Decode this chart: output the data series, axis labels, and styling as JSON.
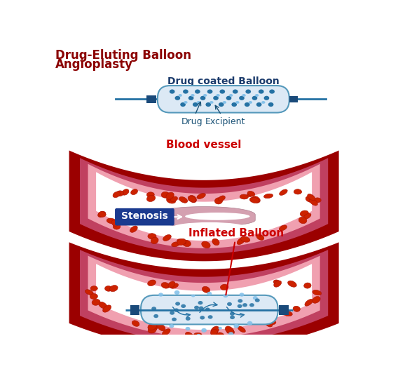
{
  "title_line1": "Drug-Eluting Balloon",
  "title_line2": "Angioplasty",
  "title_color": "#8B0000",
  "title_fontsize": 12,
  "bg_color": "#FFFFFF",
  "balloon_label": "Drug coated Balloon",
  "balloon_label_color": "#1a3a6b",
  "blood_vessel_label": "Blood vessel",
  "blood_vessel_label_color": "#cc0000",
  "stenosis_label": "Stenosis",
  "stenosis_label_color": "#FFFFFF",
  "stenosis_bg_color": "#1a3a8f",
  "inflated_label": "Inflated Balloon",
  "inflated_label_color": "#cc0000",
  "drug_label": "Drug",
  "excipient_label": "Excipient",
  "label_color_blue": "#1a5276",
  "vessel_outer_color": "#9B0000",
  "vessel_mid_color": "#C04060",
  "vessel_inner_color": "#F0A0B0",
  "vessel_lumen_color": "#FFFFFF",
  "balloon_fill": "#dce9f5",
  "balloon_outline": "#5599bb",
  "catheter_color": "#2471a3",
  "drug_dot_large": "#2471a3",
  "drug_dot_small": "#85c1e9",
  "rbc_color": "#cc2200",
  "rbc_edge": "#aa1100",
  "catheter_line_color": "#2471a3",
  "connector_color": "#1a4a7a"
}
